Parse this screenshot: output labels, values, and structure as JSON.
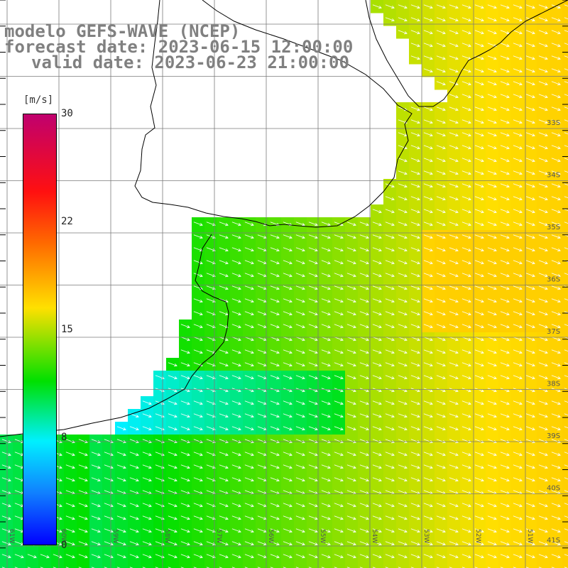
{
  "title": {
    "line1": "modelo GEFS-WAVE (NCEP)",
    "line2": "forecast date: 2023-06-15 12:00:00",
    "line3": "valid date: 2023-06-23 21:00:00"
  },
  "colorbar": {
    "unit": "[m/s]",
    "ticks": [
      "30",
      "22",
      "15",
      "8",
      "0"
    ],
    "colors": [
      "#c0006e",
      "#ff1010",
      "#ff6a00",
      "#ffe000",
      "#00e000",
      "#00f0ff",
      "#1080ff",
      "#0000ff"
    ]
  },
  "lat_labels": [
    "33S",
    "34S",
    "35S",
    "36S",
    "37S",
    "38S",
    "39S",
    "40S",
    "41S"
  ],
  "lon_labels": [
    "61W",
    "60W",
    "59W",
    "58W",
    "57W",
    "56W",
    "55W",
    "54W",
    "53W",
    "52W",
    "51W"
  ],
  "field": {
    "quantity": "wind speed",
    "arrow_direction": "toward east-southeast",
    "nearshore_speed_ms": 8,
    "offshore_speed_ms": 15
  }
}
